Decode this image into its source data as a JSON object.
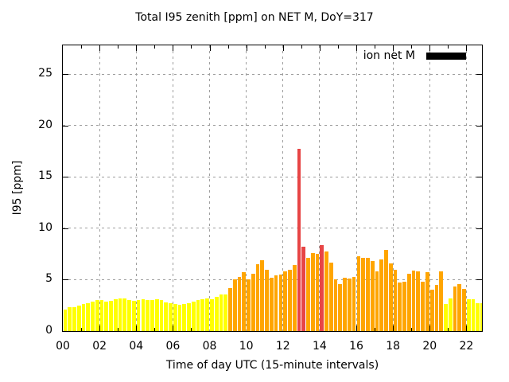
{
  "chart_data": {
    "type": "bar",
    "title": "Total I95 zenith [ppm] on NET M, DoY=317",
    "xlabel": "Time of day UTC (15-minute intervals)",
    "ylabel": "I95 [ppm]",
    "legend": {
      "label": "ion net M",
      "swatch_color": "#000000",
      "position": "top-right-inside"
    },
    "grid": true,
    "ylim": [
      0,
      27.8
    ],
    "yticks": [
      0,
      5,
      10,
      15,
      20,
      25
    ],
    "xtick_labels": [
      "00",
      "02",
      "04",
      "06",
      "08",
      "10",
      "12",
      "14",
      "16",
      "18",
      "20",
      "22"
    ],
    "x_hours_max": 22.85,
    "interval_minutes": 15,
    "palette": {
      "yellow": "#ffff00",
      "orange": "#ffa500",
      "red": "#e74545"
    },
    "frame_color": "#000000",
    "grid_color": "#9e9e9e",
    "background_color": "#ffffff",
    "times": [
      "00:00",
      "00:15",
      "00:30",
      "00:45",
      "01:00",
      "01:15",
      "01:30",
      "01:45",
      "02:00",
      "02:15",
      "02:30",
      "02:45",
      "03:00",
      "03:15",
      "03:30",
      "03:45",
      "04:00",
      "04:15",
      "04:30",
      "04:45",
      "05:00",
      "05:15",
      "05:30",
      "05:45",
      "06:00",
      "06:15",
      "06:30",
      "06:45",
      "07:00",
      "07:15",
      "07:30",
      "07:45",
      "08:00",
      "08:15",
      "08:30",
      "08:45",
      "09:00",
      "09:15",
      "09:30",
      "09:45",
      "10:00",
      "10:15",
      "10:30",
      "10:45",
      "11:00",
      "11:15",
      "11:30",
      "11:45",
      "12:00",
      "12:15",
      "12:30",
      "12:45",
      "13:00",
      "13:15",
      "13:30",
      "13:45",
      "14:00",
      "14:15",
      "14:30",
      "14:45",
      "15:00",
      "15:15",
      "15:30",
      "15:45",
      "16:00",
      "16:15",
      "16:30",
      "16:45",
      "17:00",
      "17:15",
      "17:30",
      "17:45",
      "18:00",
      "18:15",
      "18:30",
      "18:45",
      "19:00",
      "19:15",
      "19:30",
      "19:45",
      "20:00",
      "20:15",
      "20:30",
      "20:45",
      "21:00",
      "21:15",
      "21:30",
      "21:45",
      "22:00",
      "22:15",
      "22:30",
      "22:45"
    ],
    "values": [
      2.1,
      2.3,
      2.3,
      2.5,
      2.6,
      2.7,
      2.9,
      3.0,
      3.0,
      2.85,
      2.95,
      3.1,
      3.15,
      3.2,
      3.05,
      2.95,
      3.0,
      3.1,
      3.0,
      3.05,
      3.1,
      3.0,
      2.8,
      2.7,
      2.6,
      2.55,
      2.6,
      2.7,
      2.85,
      3.0,
      3.1,
      3.15,
      3.1,
      3.3,
      3.55,
      3.6,
      4.2,
      5.0,
      5.3,
      5.7,
      5.0,
      5.6,
      6.5,
      6.9,
      6.0,
      5.2,
      5.4,
      5.5,
      5.8,
      6.0,
      6.4,
      17.7,
      8.2,
      7.1,
      7.6,
      7.5,
      8.35,
      7.75,
      6.65,
      5.05,
      4.6,
      5.2,
      5.15,
      5.25,
      7.25,
      7.1,
      7.1,
      6.8,
      5.8,
      7.0,
      7.9,
      6.6,
      5.95,
      4.7,
      4.8,
      5.6,
      5.9,
      5.8,
      4.8,
      5.75,
      4.05,
      4.5,
      5.8,
      2.6,
      3.2,
      4.3,
      4.6,
      4.1,
      3.1,
      3.1,
      2.7,
      2.75
    ],
    "bar_colors": [
      "yellow",
      "yellow",
      "yellow",
      "yellow",
      "yellow",
      "yellow",
      "yellow",
      "yellow",
      "yellow",
      "yellow",
      "yellow",
      "yellow",
      "yellow",
      "yellow",
      "yellow",
      "yellow",
      "yellow",
      "yellow",
      "yellow",
      "yellow",
      "yellow",
      "yellow",
      "yellow",
      "yellow",
      "yellow",
      "yellow",
      "yellow",
      "yellow",
      "yellow",
      "yellow",
      "yellow",
      "yellow",
      "yellow",
      "yellow",
      "yellow",
      "yellow",
      "orange",
      "orange",
      "orange",
      "orange",
      "orange",
      "orange",
      "orange",
      "orange",
      "orange",
      "orange",
      "orange",
      "orange",
      "orange",
      "orange",
      "orange",
      "red",
      "red",
      "orange",
      "orange",
      "orange",
      "red",
      "orange",
      "orange",
      "orange",
      "orange",
      "orange",
      "orange",
      "orange",
      "orange",
      "orange",
      "orange",
      "orange",
      "orange",
      "orange",
      "orange",
      "orange",
      "orange",
      "orange",
      "orange",
      "orange",
      "orange",
      "orange",
      "orange",
      "orange",
      "orange",
      "orange",
      "orange",
      "yellow",
      "yellow",
      "orange",
      "orange",
      "orange",
      "yellow",
      "yellow",
      "yellow",
      "yellow"
    ]
  }
}
